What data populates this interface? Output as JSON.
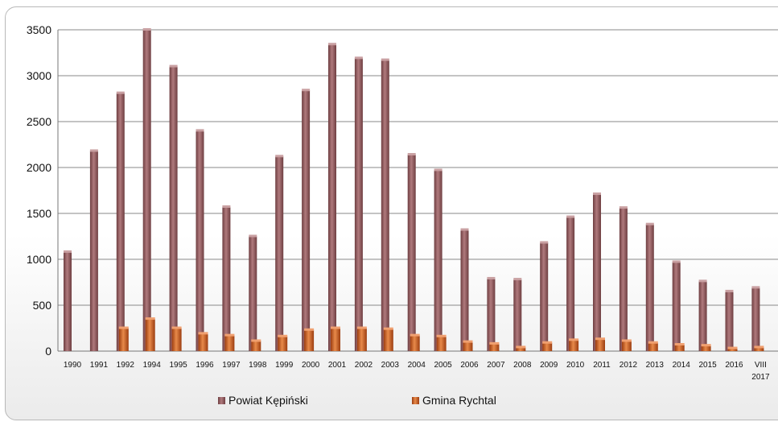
{
  "chart_data": {
    "type": "bar",
    "categories": [
      "1990",
      "1991",
      "1992",
      "1994",
      "1995",
      "1996",
      "1997",
      "1998",
      "1999",
      "2000",
      "2001",
      "2002",
      "2003",
      "2004",
      "2005",
      "2006",
      "2007",
      "2008",
      "2009",
      "2010",
      "2011",
      "2012",
      "2013",
      "2014",
      "2015",
      "2016",
      "VIII 2017"
    ],
    "series": [
      {
        "name": "Powiat Kępiński",
        "color": "#9b5f62",
        "values": [
          1080,
          2180,
          2810,
          3500,
          3100,
          2400,
          1570,
          1250,
          2120,
          2840,
          3340,
          3190,
          3170,
          2140,
          1970,
          1320,
          790,
          780,
          1180,
          1460,
          1710,
          1560,
          1380,
          970,
          760,
          650,
          690
        ]
      },
      {
        "name": "Gmina Rychtal",
        "color": "#c8561b",
        "values": [
          0,
          0,
          250,
          350,
          250,
          190,
          170,
          110,
          160,
          230,
          250,
          250,
          240,
          170,
          160,
          100,
          80,
          40,
          90,
          120,
          130,
          110,
          90,
          70,
          60,
          30,
          40
        ]
      }
    ],
    "ylim": [
      0,
      3500
    ],
    "yticks": [
      0,
      500,
      1000,
      1500,
      2000,
      2500,
      3000,
      3500
    ],
    "grid": true,
    "legend": "bottom"
  }
}
